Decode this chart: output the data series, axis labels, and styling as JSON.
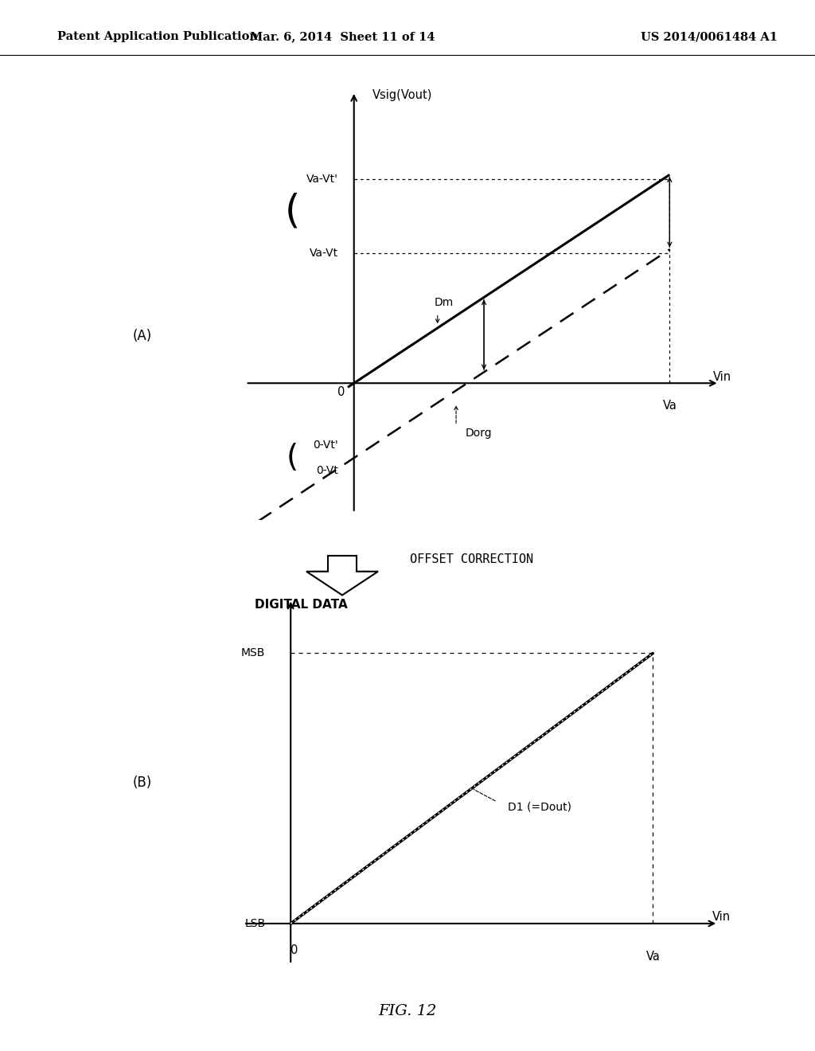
{
  "header_left": "Patent Application Publication",
  "header_mid": "Mar. 6, 2014  Sheet 11 of 14",
  "header_right": "US 2014/0061484 A1",
  "fig_label": "FIG. 12",
  "background": "#ffffff",
  "panel_A_label": "(A)",
  "panel_B_label": "(B)",
  "offset_correction_text": "OFFSET CORRECTION",
  "chart_A": {
    "yaxis_label": "Vsig(Vout)",
    "xaxis_label": "Vin",
    "origin_label": "0",
    "va_label": "Va",
    "va_vt_label": "Va-Vt",
    "va_vt_prime_label": "Va-Vt'",
    "o_vt_label": "0-Vt",
    "o_vt_prime_label": "0-Vt'",
    "dm_label": "Dm",
    "dorg_label": "Dorg"
  },
  "chart_B": {
    "yaxis_label": "DIGITAL DATA",
    "xaxis_label": "Vin",
    "origin_label": "0",
    "va_label": "Va",
    "msb_label": "MSB",
    "lsb_label": "LSB",
    "d1_label": "D1 (=Dout)"
  }
}
